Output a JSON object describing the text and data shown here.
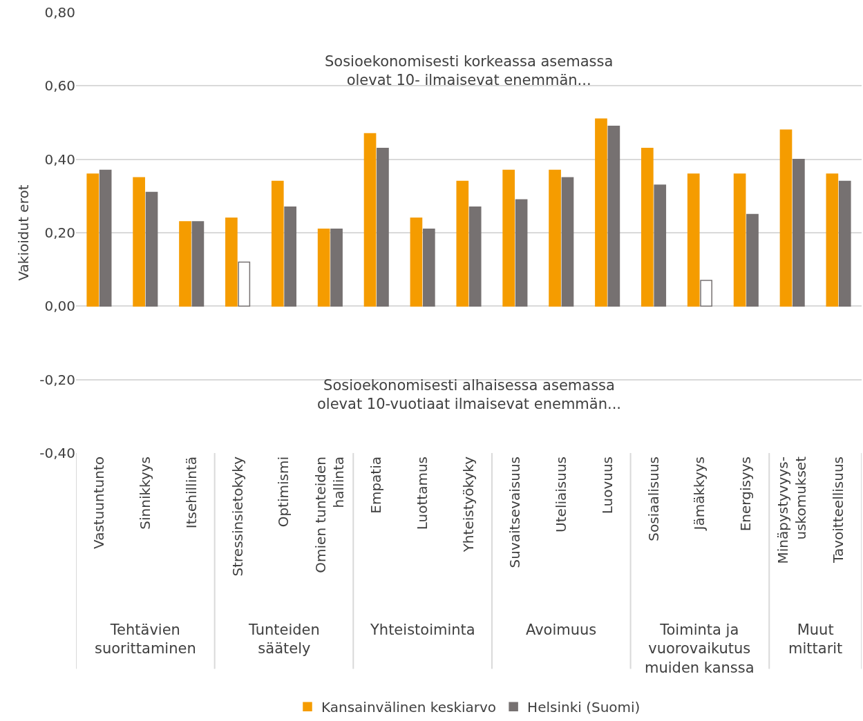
{
  "chart_data": {
    "type": "bar",
    "ylabel": "Vakioidut erot",
    "categories": [
      "Vastuuntunto",
      "Sinnikkyys",
      "Itsehillintä",
      "Stressinsietokyky",
      "Optimismi",
      "Omien tunteiden\nhallinta",
      "Empatia",
      "Luottamus",
      "Yhteistyökyky",
      "Suvaitsevaisuus",
      "Uteliaisuus",
      "Luovuus",
      "Sosiaalisuus",
      "Jämäkkyys",
      "Energisyys",
      "Minäpystyvyys-\nuskomukset",
      "Tavoitteellisuus"
    ],
    "series": [
      {
        "name": "Kansainvälinen keskiarvo",
        "color": "#f59c00",
        "values": [
          0.36,
          0.35,
          0.23,
          0.24,
          0.34,
          0.21,
          0.47,
          0.24,
          0.34,
          0.37,
          0.37,
          0.51,
          0.43,
          0.36,
          0.36,
          0.48,
          0.36
        ]
      },
      {
        "name": "Helsinki (Suomi)",
        "color": "#767171",
        "colors": [
          "#767171",
          "#767171",
          "#767171",
          "#ffffff",
          "#767171",
          "#767171",
          "#767171",
          "#767171",
          "#767171",
          "#767171",
          "#767171",
          "#767171",
          "#767171",
          "#ffffff",
          "#767171",
          "#767171",
          "#767171"
        ],
        "values": [
          0.37,
          0.31,
          0.23,
          0.12,
          0.27,
          0.21,
          0.43,
          0.21,
          0.27,
          0.29,
          0.35,
          0.49,
          0.33,
          0.07,
          0.25,
          0.4,
          0.34
        ]
      }
    ],
    "ylim": [
      -0.4,
      0.8
    ],
    "yticks": [
      {
        "value": -0.4,
        "label": "-0,40"
      },
      {
        "value": -0.2,
        "label": "-0,20"
      },
      {
        "value": 0,
        "label": "0,00"
      },
      {
        "value": 0.2,
        "label": "0,20"
      },
      {
        "value": 0.4,
        "label": "0,40"
      },
      {
        "value": 0.6,
        "label": "0,60"
      },
      {
        "value": 0.8,
        "label": "0,80"
      }
    ],
    "grid": "y",
    "legend": "bottom",
    "annotations": [
      "Sosioekonomisesti korkeassa asemassa\nolevat 10- ilmaisevat enemmän...",
      "Sosioekonomisesti alhaisessa asemassa\nolevat 10-vuotiaat ilmaisevat enemmän...",
      "Tehtävien\nsuorittaminen",
      "Tunteiden\nsäätely",
      "Yhteistoiminta",
      "Avoimuus",
      "Toiminta ja\nvuorovaikutus\nmuiden kanssa",
      "Muut\nmittarit"
    ]
  }
}
